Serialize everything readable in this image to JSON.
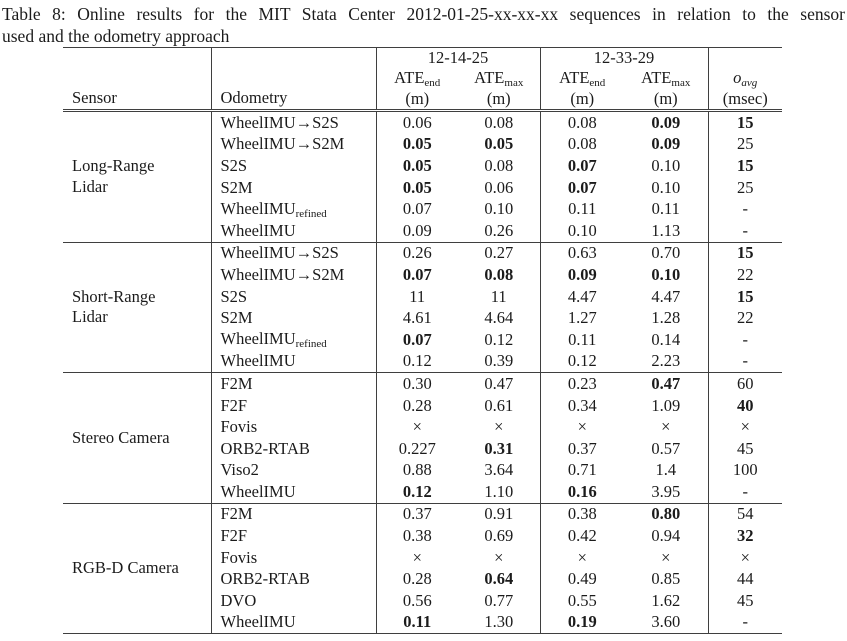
{
  "caption": {
    "line1": "Table 8: Online results for the MIT Stata Center 2012-01-25-xx-xx-xx sequences in relation to the sensor",
    "line2": "used and the odometry approach"
  },
  "header": {
    "sensor": "Sensor",
    "odometry": "Odometry",
    "sequences": [
      "12-14-25",
      "12-33-29"
    ],
    "ate_base": "ATE",
    "ate_subs": [
      "end",
      "max"
    ],
    "unit_m": "(m)",
    "o_base": "o",
    "o_sub": "avg",
    "o_unit": "(msec)"
  },
  "groups": [
    {
      "sensor": "Long-Range Lidar",
      "rows": [
        {
          "odometry": "WheelIMU→S2S",
          "sub": "",
          "values": [
            "0.06",
            "0.08",
            "0.08",
            "0.09",
            "15"
          ],
          "bold": [
            false,
            false,
            false,
            true,
            true
          ]
        },
        {
          "odometry": "WheelIMU→S2M",
          "sub": "",
          "values": [
            "0.05",
            "0.05",
            "0.08",
            "0.09",
            "25"
          ],
          "bold": [
            true,
            true,
            false,
            true,
            false
          ]
        },
        {
          "odometry": "S2S",
          "sub": "",
          "values": [
            "0.05",
            "0.08",
            "0.07",
            "0.10",
            "15"
          ],
          "bold": [
            true,
            false,
            true,
            false,
            true
          ]
        },
        {
          "odometry": "S2M",
          "sub": "",
          "values": [
            "0.05",
            "0.06",
            "0.07",
            "0.10",
            "25"
          ],
          "bold": [
            true,
            false,
            true,
            false,
            false
          ]
        },
        {
          "odometry": "WheelIMU",
          "sub": "refined",
          "values": [
            "0.07",
            "0.10",
            "0.11",
            "0.11",
            "-"
          ],
          "bold": [
            false,
            false,
            false,
            false,
            false
          ]
        },
        {
          "odometry": "WheelIMU",
          "sub": "",
          "values": [
            "0.09",
            "0.26",
            "0.10",
            "1.13",
            "-"
          ],
          "bold": [
            false,
            false,
            false,
            false,
            false
          ]
        }
      ]
    },
    {
      "sensor": "Short-Range Lidar",
      "rows": [
        {
          "odometry": "WheelIMU→S2S",
          "sub": "",
          "values": [
            "0.26",
            "0.27",
            "0.63",
            "0.70",
            "15"
          ],
          "bold": [
            false,
            false,
            false,
            false,
            true
          ]
        },
        {
          "odometry": "WheelIMU→S2M",
          "sub": "",
          "values": [
            "0.07",
            "0.08",
            "0.09",
            "0.10",
            "22"
          ],
          "bold": [
            true,
            true,
            true,
            true,
            false
          ]
        },
        {
          "odometry": "S2S",
          "sub": "",
          "values": [
            "11",
            "11",
            "4.47",
            "4.47",
            "15"
          ],
          "bold": [
            false,
            false,
            false,
            false,
            true
          ]
        },
        {
          "odometry": "S2M",
          "sub": "",
          "values": [
            "4.61",
            "4.64",
            "1.27",
            "1.28",
            "22"
          ],
          "bold": [
            false,
            false,
            false,
            false,
            false
          ]
        },
        {
          "odometry": "WheelIMU",
          "sub": "refined",
          "values": [
            "0.07",
            "0.12",
            "0.11",
            "0.14",
            "-"
          ],
          "bold": [
            true,
            false,
            false,
            false,
            false
          ]
        },
        {
          "odometry": "WheelIMU",
          "sub": "",
          "values": [
            "0.12",
            "0.39",
            "0.12",
            "2.23",
            "-"
          ],
          "bold": [
            false,
            false,
            false,
            false,
            false
          ]
        }
      ]
    },
    {
      "sensor": "Stereo Camera",
      "rows": [
        {
          "odometry": "F2M",
          "sub": "",
          "values": [
            "0.30",
            "0.47",
            "0.23",
            "0.47",
            "60"
          ],
          "bold": [
            false,
            false,
            false,
            true,
            false
          ]
        },
        {
          "odometry": "F2F",
          "sub": "",
          "values": [
            "0.28",
            "0.61",
            "0.34",
            "1.09",
            "40"
          ],
          "bold": [
            false,
            false,
            false,
            false,
            true
          ]
        },
        {
          "odometry": "Fovis",
          "sub": "",
          "values": [
            "×",
            "×",
            "×",
            "×",
            "×"
          ],
          "bold": [
            false,
            false,
            false,
            false,
            false
          ]
        },
        {
          "odometry": "ORB2-RTAB",
          "sub": "",
          "values": [
            "0.227",
            "0.31",
            "0.37",
            "0.57",
            "45"
          ],
          "bold": [
            false,
            true,
            false,
            false,
            false
          ]
        },
        {
          "odometry": "Viso2",
          "sub": "",
          "values": [
            "0.88",
            "3.64",
            "0.71",
            "1.4",
            "100"
          ],
          "bold": [
            false,
            false,
            false,
            false,
            false
          ]
        },
        {
          "odometry": "WheelIMU",
          "sub": "",
          "values": [
            "0.12",
            "1.10",
            "0.16",
            "3.95",
            "-"
          ],
          "bold": [
            true,
            false,
            true,
            false,
            false
          ]
        }
      ]
    },
    {
      "sensor": "RGB-D Camera",
      "rows": [
        {
          "odometry": "F2M",
          "sub": "",
          "values": [
            "0.37",
            "0.91",
            "0.38",
            "0.80",
            "54"
          ],
          "bold": [
            false,
            false,
            false,
            true,
            false
          ]
        },
        {
          "odometry": "F2F",
          "sub": "",
          "values": [
            "0.38",
            "0.69",
            "0.42",
            "0.94",
            "32"
          ],
          "bold": [
            false,
            false,
            false,
            false,
            true
          ]
        },
        {
          "odometry": "Fovis",
          "sub": "",
          "values": [
            "×",
            "×",
            "×",
            "×",
            "×"
          ],
          "bold": [
            false,
            false,
            false,
            false,
            false
          ]
        },
        {
          "odometry": "ORB2-RTAB",
          "sub": "",
          "values": [
            "0.28",
            "0.64",
            "0.49",
            "0.85",
            "44"
          ],
          "bold": [
            false,
            true,
            false,
            false,
            false
          ]
        },
        {
          "odometry": "DVO",
          "sub": "",
          "values": [
            "0.56",
            "0.77",
            "0.55",
            "1.62",
            "45"
          ],
          "bold": [
            false,
            false,
            false,
            false,
            false
          ]
        },
        {
          "odometry": "WheelIMU",
          "sub": "",
          "values": [
            "0.11",
            "1.30",
            "0.19",
            "3.60",
            "-"
          ],
          "bold": [
            true,
            false,
            true,
            false,
            false
          ]
        }
      ]
    }
  ]
}
